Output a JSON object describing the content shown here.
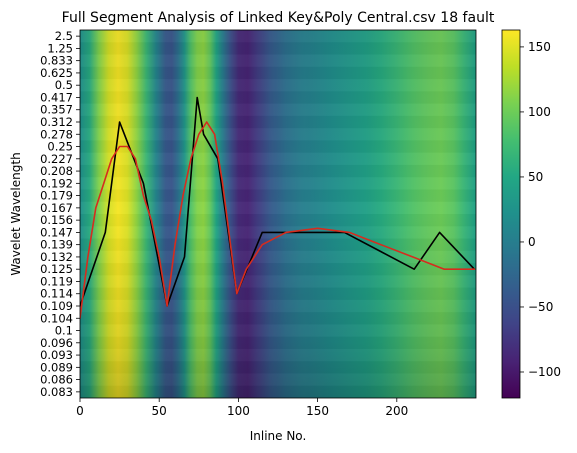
{
  "chart_data": {
    "type": "heatmap",
    "title": "Full Segment Analysis of Linked Key&Poly Central.csv 18 fault",
    "xlabel": "Inline No.",
    "ylabel": "Wavelet Wavelength",
    "xlim": [
      0,
      250
    ],
    "x_ticks": [
      0,
      50,
      100,
      150,
      200
    ],
    "y_tick_labels": [
      "0.083",
      "0.086",
      "0.089",
      "0.093",
      "0.096",
      "0.1",
      "0.104",
      "0.109",
      "0.114",
      "0.119",
      "0.125",
      "0.132",
      "0.139",
      "0.147",
      "0.156",
      "0.167",
      "0.179",
      "0.192",
      "0.208",
      "0.227",
      "0.25",
      "0.278",
      "0.312",
      "0.357",
      "0.417",
      "0.5",
      "0.625",
      "0.833",
      "1.25",
      "2.5"
    ],
    "colorbar": {
      "colormap": "viridis",
      "range": [
        -120,
        163
      ],
      "ticks": [
        -100,
        -50,
        0,
        50,
        100,
        150
      ]
    },
    "series": [
      {
        "style": "black-line",
        "color": "#000000",
        "x": [
          0,
          16,
          25,
          40,
          55,
          66,
          74,
          78,
          87,
          99,
          115,
          167,
          211,
          227,
          249
        ],
        "y": [
          0.109,
          0.147,
          0.312,
          0.192,
          0.109,
          0.132,
          0.417,
          0.278,
          0.227,
          0.114,
          0.147,
          0.147,
          0.125,
          0.147,
          0.125
        ]
      },
      {
        "style": "red-fit",
        "color": "#d62c1e",
        "x": [
          0,
          5,
          10,
          15,
          20,
          25,
          30,
          35,
          40,
          45,
          50,
          55,
          60,
          65,
          70,
          75,
          80,
          85,
          90,
          95,
          99,
          105,
          115,
          130,
          150,
          170,
          190,
          210,
          230,
          249
        ],
        "y": [
          0.104,
          0.132,
          0.167,
          0.192,
          0.227,
          0.25,
          0.25,
          0.227,
          0.179,
          0.156,
          0.132,
          0.109,
          0.139,
          0.179,
          0.227,
          0.278,
          0.312,
          0.278,
          0.192,
          0.139,
          0.114,
          0.125,
          0.139,
          0.147,
          0.15,
          0.147,
          0.139,
          0.132,
          0.125,
          0.125
        ]
      }
    ],
    "heat_columns": [
      {
        "x": 0,
        "v": 20
      },
      {
        "x": 6,
        "v": 55
      },
      {
        "x": 12,
        "v": 110
      },
      {
        "x": 18,
        "v": 145
      },
      {
        "x": 24,
        "v": 160
      },
      {
        "x": 30,
        "v": 148
      },
      {
        "x": 36,
        "v": 115
      },
      {
        "x": 42,
        "v": 70
      },
      {
        "x": 48,
        "v": 10
      },
      {
        "x": 54,
        "v": -40
      },
      {
        "x": 58,
        "v": -45
      },
      {
        "x": 62,
        "v": -15
      },
      {
        "x": 66,
        "v": 30
      },
      {
        "x": 70,
        "v": 85
      },
      {
        "x": 74,
        "v": 110
      },
      {
        "x": 78,
        "v": 115
      },
      {
        "x": 82,
        "v": 95
      },
      {
        "x": 86,
        "v": 50
      },
      {
        "x": 90,
        "v": 0
      },
      {
        "x": 95,
        "v": -50
      },
      {
        "x": 100,
        "v": -85
      },
      {
        "x": 106,
        "v": -90
      },
      {
        "x": 112,
        "v": -70
      },
      {
        "x": 120,
        "v": -40
      },
      {
        "x": 130,
        "v": -15
      },
      {
        "x": 140,
        "v": 0
      },
      {
        "x": 150,
        "v": 10
      },
      {
        "x": 160,
        "v": 20
      },
      {
        "x": 170,
        "v": 30
      },
      {
        "x": 180,
        "v": 40
      },
      {
        "x": 190,
        "v": 55
      },
      {
        "x": 200,
        "v": 70
      },
      {
        "x": 210,
        "v": 85
      },
      {
        "x": 220,
        "v": 95
      },
      {
        "x": 228,
        "v": 100
      },
      {
        "x": 236,
        "v": 90
      },
      {
        "x": 242,
        "v": 70
      },
      {
        "x": 249,
        "v": 45
      }
    ]
  }
}
